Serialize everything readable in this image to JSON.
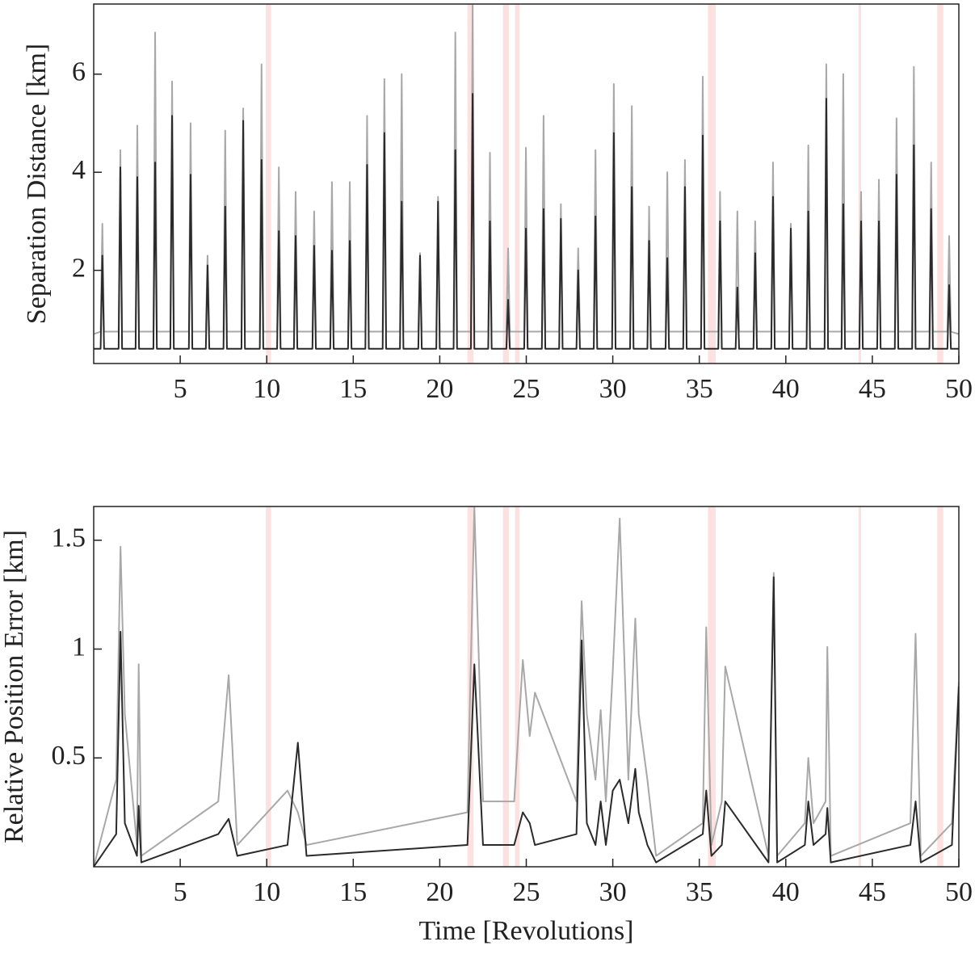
{
  "chart_data": [
    {
      "type": "line",
      "ylabel": "Separation Distance [km]",
      "xlim": [
        0,
        50
      ],
      "xticks": [
        5,
        10,
        15,
        20,
        25,
        30,
        35,
        40,
        45,
        50
      ],
      "ylim": [
        0.1,
        7.43
      ],
      "yticks": [
        2,
        4,
        6
      ],
      "bands": [
        [
          9.95,
          10.25
        ],
        [
          21.6,
          21.95
        ],
        [
          23.65,
          24.0
        ],
        [
          24.35,
          24.6
        ],
        [
          35.5,
          35.95
        ],
        [
          44.2,
          44.35
        ],
        [
          48.75,
          49.1
        ]
      ],
      "band_color": "#fde0e0",
      "x": [
        0,
        0.4,
        0.5,
        0.6,
        1.44,
        1.54,
        1.64,
        2.42,
        2.52,
        2.62,
        3.45,
        3.55,
        3.65,
        4.43,
        4.53,
        4.63,
        5.5,
        5.6,
        5.7,
        6.48,
        6.58,
        6.68,
        7.5,
        7.6,
        7.7,
        8.54,
        8.64,
        8.74,
        9.6,
        9.7,
        9.8,
        10.6,
        10.7,
        10.8,
        11.57,
        11.67,
        11.77,
        12.64,
        12.74,
        12.84,
        13.67,
        13.77,
        13.87,
        14.7,
        14.8,
        14.9,
        15.7,
        15.8,
        15.9,
        16.7,
        16.8,
        16.9,
        17.7,
        17.8,
        17.9,
        18.76,
        18.86,
        18.96,
        19.8,
        19.9,
        20.0,
        20.8,
        20.9,
        21.0,
        21.8,
        21.9,
        22.0,
        22.8,
        22.9,
        23.0,
        23.85,
        23.95,
        24.05,
        24.88,
        24.98,
        25.08,
        25.9,
        26.0,
        26.1,
        26.9,
        27.0,
        27.1,
        27.9,
        28.0,
        28.1,
        28.9,
        29.0,
        29.1,
        29.96,
        30.06,
        30.16,
        31.0,
        31.1,
        31.2,
        32.0,
        32.1,
        32.2,
        33.05,
        33.15,
        33.25,
        34.07,
        34.17,
        34.27,
        35.1,
        35.2,
        35.3,
        36.1,
        36.2,
        36.3,
        37.1,
        37.2,
        37.3,
        38.13,
        38.23,
        38.33,
        39.16,
        39.26,
        39.36,
        40.19,
        40.29,
        40.39,
        41.2,
        41.3,
        41.4,
        42.24,
        42.34,
        42.44,
        43.22,
        43.32,
        43.42,
        44.25,
        44.35,
        44.45,
        45.28,
        45.38,
        45.48,
        46.3,
        46.4,
        46.5,
        47.3,
        47.4,
        47.5,
        48.3,
        48.4,
        48.5,
        49.34,
        49.44,
        49.54,
        50
      ],
      "series": [
        {
          "color": "#a8a8a8",
          "values": [
            0.7,
            0.75,
            2.95,
            0.75,
            0.75,
            4.45,
            0.75,
            0.75,
            4.95,
            0.75,
            0.75,
            6.85,
            0.75,
            0.75,
            5.85,
            0.75,
            0.75,
            5.0,
            0.75,
            0.75,
            2.3,
            0.75,
            0.75,
            4.85,
            0.75,
            0.75,
            5.3,
            0.75,
            0.75,
            6.2,
            0.75,
            0.75,
            4.1,
            0.75,
            0.75,
            3.6,
            0.75,
            0.75,
            3.2,
            0.75,
            0.75,
            3.8,
            0.75,
            0.75,
            3.8,
            0.75,
            0.75,
            5.15,
            0.75,
            0.75,
            5.9,
            0.75,
            0.75,
            6.0,
            0.75,
            0.75,
            2.35,
            0.75,
            0.75,
            3.5,
            0.75,
            0.75,
            6.85,
            0.75,
            0.75,
            7.4,
            0.75,
            0.75,
            4.4,
            0.75,
            0.75,
            2.45,
            0.75,
            0.75,
            4.5,
            0.75,
            0.75,
            5.15,
            0.75,
            0.75,
            3.35,
            0.75,
            0.75,
            2.45,
            0.75,
            0.75,
            4.45,
            0.75,
            0.75,
            5.8,
            0.75,
            0.75,
            5.35,
            0.75,
            0.75,
            3.3,
            0.75,
            0.75,
            4.0,
            0.75,
            0.75,
            4.25,
            0.75,
            0.75,
            5.95,
            0.75,
            0.75,
            3.6,
            0.75,
            0.75,
            3.2,
            0.75,
            0.75,
            3.0,
            0.75,
            0.75,
            4.2,
            0.75,
            0.75,
            2.95,
            0.75,
            0.75,
            4.55,
            0.75,
            0.75,
            6.2,
            0.75,
            0.75,
            6.0,
            0.75,
            0.75,
            3.6,
            0.75,
            0.75,
            3.85,
            0.75,
            0.75,
            5.1,
            0.75,
            0.75,
            6.15,
            0.75,
            0.75,
            4.2,
            0.75,
            0.75,
            2.7,
            0.75,
            0.7
          ]
        },
        {
          "color": "#2a2a2a",
          "values": [
            0.4,
            0.4,
            2.3,
            0.4,
            0.4,
            4.1,
            0.4,
            0.4,
            3.9,
            0.4,
            0.4,
            4.2,
            0.4,
            0.4,
            5.15,
            0.4,
            0.4,
            3.95,
            0.4,
            0.4,
            2.1,
            0.4,
            0.4,
            3.3,
            0.4,
            0.4,
            5.05,
            0.4,
            0.4,
            4.25,
            0.4,
            0.4,
            2.8,
            0.4,
            0.4,
            2.7,
            0.4,
            0.4,
            2.5,
            0.4,
            0.4,
            2.4,
            0.4,
            0.4,
            2.6,
            0.4,
            0.4,
            4.15,
            0.4,
            0.4,
            4.8,
            0.4,
            0.4,
            3.4,
            0.4,
            0.4,
            2.3,
            0.4,
            0.4,
            3.4,
            0.4,
            0.4,
            4.45,
            0.4,
            0.4,
            5.6,
            0.4,
            0.4,
            3.0,
            0.4,
            0.4,
            1.4,
            0.4,
            0.4,
            2.85,
            0.4,
            0.4,
            3.25,
            0.4,
            0.4,
            3.05,
            0.4,
            0.4,
            2.0,
            0.4,
            0.4,
            3.1,
            0.4,
            0.4,
            4.8,
            0.4,
            0.4,
            3.7,
            0.4,
            0.4,
            2.6,
            0.4,
            0.4,
            2.25,
            0.4,
            0.4,
            3.7,
            0.4,
            0.4,
            4.75,
            0.4,
            0.4,
            3.0,
            0.4,
            0.4,
            1.65,
            0.4,
            0.4,
            2.35,
            0.4,
            0.4,
            3.5,
            0.4,
            0.4,
            2.85,
            0.4,
            0.4,
            3.2,
            0.4,
            0.4,
            5.5,
            0.4,
            0.4,
            3.35,
            0.4,
            0.4,
            3.0,
            0.4,
            0.4,
            3.0,
            0.4,
            0.4,
            3.95,
            0.4,
            0.4,
            4.55,
            0.4,
            0.4,
            3.25,
            0.4,
            0.4,
            1.7,
            0.4,
            0.4
          ]
        }
      ]
    },
    {
      "type": "line",
      "ylabel": "Relative Position Error [km]",
      "xlabel": "Time [Revolutions]",
      "xlim": [
        0,
        50
      ],
      "xticks": [
        5,
        10,
        15,
        20,
        25,
        30,
        35,
        40,
        45,
        50
      ],
      "ylim": [
        0,
        1.655
      ],
      "yticks": [
        0.5,
        1,
        1.5
      ],
      "bands": [
        [
          9.95,
          10.25
        ],
        [
          21.6,
          21.95
        ],
        [
          23.65,
          24.0
        ],
        [
          24.35,
          24.6
        ],
        [
          35.5,
          35.95
        ],
        [
          44.2,
          44.35
        ],
        [
          48.75,
          49.1
        ]
      ],
      "band_color": "#fde0e0",
      "x": [
        0,
        1.3,
        1.55,
        1.8,
        2.5,
        2.6,
        2.75,
        7.2,
        7.8,
        8.3,
        11.2,
        11.8,
        12.3,
        21.6,
        22.0,
        22.5,
        24.3,
        24.8,
        25.2,
        25.5,
        27.9,
        28.2,
        28.5,
        29.0,
        29.3,
        29.6,
        30.0,
        30.4,
        30.9,
        31.3,
        31.5,
        32.0,
        32.5,
        35.2,
        35.4,
        35.7,
        36.3,
        36.5,
        39.0,
        39.3,
        39.5,
        41.1,
        41.3,
        41.6,
        42.3,
        42.4,
        42.6,
        47.2,
        47.5,
        47.8,
        49.6,
        50
      ],
      "series": [
        {
          "color": "#a8a8a8",
          "values": [
            0,
            0.4,
            1.47,
            0.7,
            0.1,
            0.93,
            0.05,
            0.3,
            0.88,
            0.1,
            0.35,
            0.25,
            0.1,
            0.25,
            1.65,
            0.3,
            0.3,
            0.95,
            0.6,
            0.8,
            0.3,
            1.22,
            0.7,
            0.4,
            0.72,
            0.3,
            0.9,
            1.6,
            0.4,
            1.14,
            0.7,
            0.4,
            0.05,
            0.2,
            1.1,
            0.1,
            0.3,
            0.92,
            0.05,
            1.35,
            0.05,
            0.2,
            0.5,
            0.2,
            0.3,
            1.01,
            0.05,
            0.2,
            1.07,
            0.05,
            0.2,
            0.85
          ]
        },
        {
          "color": "#2a2a2a",
          "values": [
            0,
            0.15,
            1.08,
            0.2,
            0.05,
            0.28,
            0.02,
            0.15,
            0.22,
            0.05,
            0.1,
            0.57,
            0.05,
            0.1,
            0.93,
            0.1,
            0.1,
            0.25,
            0.2,
            0.1,
            0.15,
            1.04,
            0.2,
            0.1,
            0.3,
            0.1,
            0.35,
            0.4,
            0.2,
            0.45,
            0.25,
            0.1,
            0.02,
            0.15,
            0.35,
            0.05,
            0.1,
            0.3,
            0.02,
            1.33,
            0.02,
            0.1,
            0.3,
            0.1,
            0.15,
            0.27,
            0.02,
            0.1,
            0.3,
            0.02,
            0.1,
            0.83
          ]
        }
      ]
    }
  ]
}
